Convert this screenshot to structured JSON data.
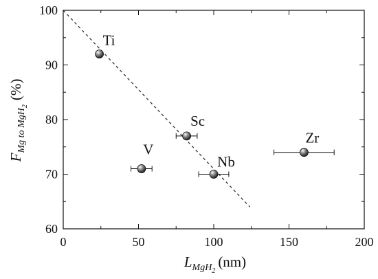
{
  "chart_data": {
    "type": "scatter",
    "xlabel": {
      "symbol": "L",
      "subscript": "MgH",
      "sub_subscript": "2",
      "unit": "(nm)"
    },
    "ylabel": {
      "symbol": "F",
      "subscript": "Mg to MgH",
      "sub_subscript": "2",
      "unit": "(%)"
    },
    "xlim": [
      0,
      200
    ],
    "ylim": [
      60,
      100
    ],
    "xticks": [
      0,
      50,
      100,
      150,
      200
    ],
    "yticks": [
      60,
      70,
      80,
      90,
      100
    ],
    "grid": false,
    "points": [
      {
        "label": "Ti",
        "x": 24,
        "y": 92,
        "xerr": 0
      },
      {
        "label": "V",
        "x": 52,
        "y": 71,
        "xerr": 7
      },
      {
        "label": "Sc",
        "x": 82,
        "y": 77,
        "xerr": 7
      },
      {
        "label": "Nb",
        "x": 100,
        "y": 70,
        "xerr": 10
      },
      {
        "label": "Zr",
        "x": 160,
        "y": 74,
        "xerr": 20
      }
    ],
    "fit_line": {
      "style": "dashed",
      "x": [
        0,
        124
      ],
      "y": [
        100,
        64
      ]
    },
    "colors": {
      "marker": "#111111",
      "line": "#333333",
      "axis": "#111111"
    }
  }
}
